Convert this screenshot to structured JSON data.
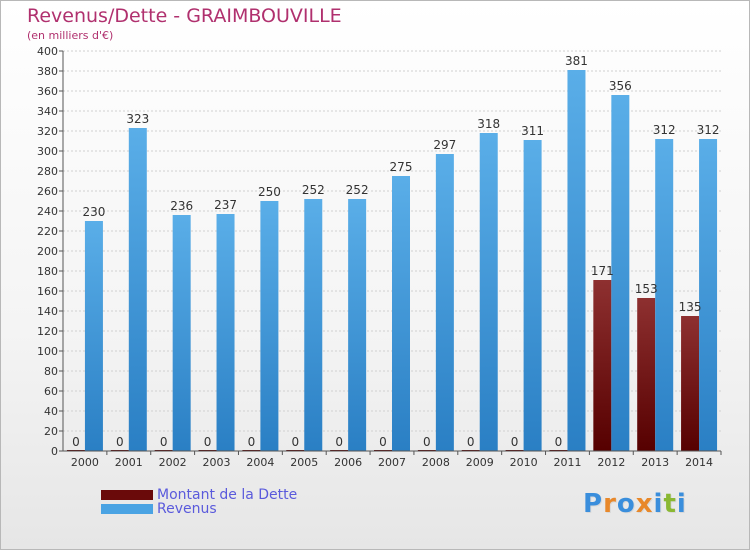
{
  "title": "Revenus/Dette - GRAIMBOUVILLE",
  "subtitle": "(en milliers d'€)",
  "colors": {
    "dette_top": "#8e3030",
    "dette_bottom": "#560000",
    "revenus_top": "#5aaee8",
    "revenus_bottom": "#2a7fc4",
    "grid": "#d0d0d0"
  },
  "legend": [
    {
      "label": "Montant de la Dette",
      "color": "#6a0a0a"
    },
    {
      "label": "Revenus",
      "color": "#4aa3e3"
    }
  ],
  "logo": {
    "text": "Proxiti",
    "letter_colors": [
      "#3a8edc",
      "#e8882a",
      "#3a8edc",
      "#e8882a",
      "#3a8edc",
      "#8ab832",
      "#3a8edc"
    ]
  },
  "chart_data": {
    "type": "bar",
    "title": "Revenus/Dette - GRAIMBOUVILLE",
    "ylabel": "(en milliers d'€)",
    "xlabel": "",
    "ylim": [
      0,
      400
    ],
    "ytick_step": 20,
    "grid": true,
    "legend_position": "bottom-left",
    "categories": [
      "2000",
      "2001",
      "2002",
      "2003",
      "2004",
      "2005",
      "2006",
      "2007",
      "2008",
      "2009",
      "2010",
      "2011",
      "2012",
      "2013",
      "2014"
    ],
    "series": [
      {
        "name": "Montant de la Dette",
        "values": [
          0,
          0,
          0,
          0,
          0,
          0,
          0,
          0,
          0,
          0,
          0,
          0,
          171,
          153,
          135
        ],
        "labels": [
          "0",
          "0",
          "0",
          "0",
          "0",
          "0",
          "0",
          "0",
          "0",
          "0",
          "0",
          "0",
          "171",
          "153",
          "135"
        ]
      },
      {
        "name": "Revenus",
        "values": [
          230,
          323,
          236,
          237,
          250,
          252,
          252,
          275,
          297,
          318,
          311,
          381,
          356,
          312,
          312
        ],
        "labels": [
          "230",
          "323",
          "236",
          "237",
          "250",
          "252",
          "252",
          "275",
          "297",
          "318",
          "311",
          "381",
          "356",
          "312",
          "312"
        ]
      }
    ]
  }
}
